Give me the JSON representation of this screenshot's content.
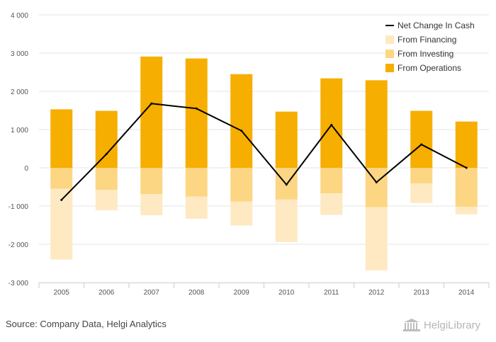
{
  "source": "Source: Company Data, Helgi Analytics",
  "brand": {
    "name": "HelgiLibrary"
  },
  "colors": {
    "operations": "#f6ae00",
    "investing": "#fcd683",
    "financing": "#fee9c2",
    "net_line": "#000000",
    "grid": "#e6e6e6",
    "axis": "#cccccc"
  },
  "chart_data": {
    "type": "bar",
    "stacked": true,
    "categories": [
      "2005",
      "2006",
      "2007",
      "2008",
      "2009",
      "2010",
      "2011",
      "2012",
      "2013",
      "2014"
    ],
    "series": [
      {
        "name": "From Operations",
        "kind": "bar",
        "values": [
          1530,
          1490,
          2910,
          2860,
          2450,
          1470,
          2340,
          2290,
          1490,
          1210
        ]
      },
      {
        "name": "From Investing",
        "kind": "bar",
        "values": [
          -550,
          -580,
          -690,
          -750,
          -880,
          -830,
          -670,
          -1030,
          -410,
          -1020
        ]
      },
      {
        "name": "From Financing",
        "kind": "bar",
        "values": [
          -1850,
          -530,
          -550,
          -580,
          -630,
          -1110,
          -560,
          -1650,
          -510,
          -200
        ]
      },
      {
        "name": "Net Change In Cash",
        "kind": "line",
        "values": [
          -840,
          360,
          1680,
          1550,
          970,
          -440,
          1120,
          -380,
          610,
          0
        ]
      }
    ],
    "ylim": [
      -3000,
      4000
    ],
    "yticks": [
      -3000,
      -2000,
      -1000,
      0,
      1000,
      2000,
      3000,
      4000
    ],
    "ytick_labels": [
      "-3 000",
      "-2 000",
      "-1 000",
      "0",
      "1 000",
      "2 000",
      "3 000",
      "4 000"
    ],
    "grid": true,
    "legend": {
      "position": "top-right",
      "order": [
        "Net Change In Cash",
        "From Financing",
        "From Investing",
        "From Operations"
      ]
    },
    "title": "",
    "xlabel": "",
    "ylabel": ""
  }
}
